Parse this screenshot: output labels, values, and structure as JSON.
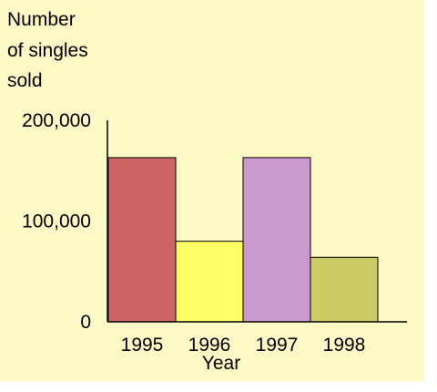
{
  "chart_data": {
    "type": "bar",
    "ylabel_lines": [
      "Number",
      "of singles",
      "sold"
    ],
    "xlabel": "Year",
    "categories": [
      "1995",
      "1996",
      "1997",
      "1998"
    ],
    "values": [
      163000,
      80000,
      163000,
      64000
    ],
    "ylim": [
      0,
      200000
    ],
    "yticks": [
      {
        "value": 0,
        "label": "0"
      },
      {
        "value": 100000,
        "label": "100,000"
      },
      {
        "value": 200000,
        "label": "200,000"
      }
    ],
    "bar_colors": [
      "#cc6666",
      "#ffff66",
      "#cc99cc",
      "#cccc66"
    ],
    "bar_stroke": "#000000",
    "background": "#fdf9c6",
    "grid": false,
    "legend": "none"
  }
}
